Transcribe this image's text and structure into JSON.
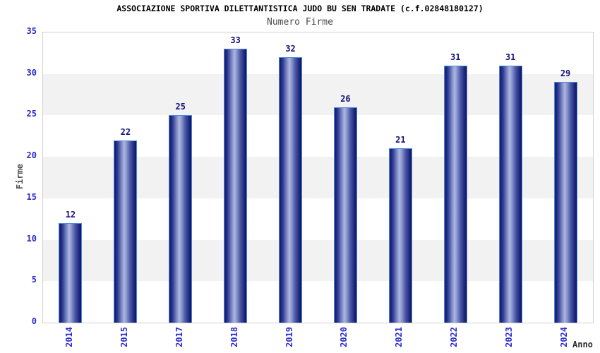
{
  "chart_data": {
    "type": "bar",
    "title": "ASSOCIAZIONE SPORTIVA DILETTANTISTICA JUDO BU SEN TRADATE (c.f.02848180127)",
    "subtitle": "Numero Firme",
    "xlabel": "Anno",
    "ylabel": "Firme",
    "categories": [
      "2014",
      "2015",
      "2017",
      "2018",
      "2019",
      "2020",
      "2021",
      "2022",
      "2023",
      "2024"
    ],
    "values": [
      12,
      22,
      25,
      33,
      32,
      26,
      21,
      31,
      31,
      29
    ],
    "ylim": [
      0,
      35
    ],
    "yticks": [
      0,
      5,
      10,
      15,
      20,
      25,
      30,
      35
    ],
    "grid": "alternating horizontal bands every 5 units",
    "legend": "none",
    "colors": {
      "title": "#000000",
      "subtitle": "#4a4a4a",
      "axis_label": "#4d4d4d",
      "tick_label": "#2a2ace",
      "value_label": "#13137b",
      "bar_border": "#4a8ae0",
      "bar_edge_dark": "#171e6b",
      "bar_highlight": "#aeb7de",
      "band_white": "#ffffff",
      "band_gray": "#f2f2f2",
      "plot_border": "#d0d0d0",
      "background": "#ffffff"
    }
  }
}
